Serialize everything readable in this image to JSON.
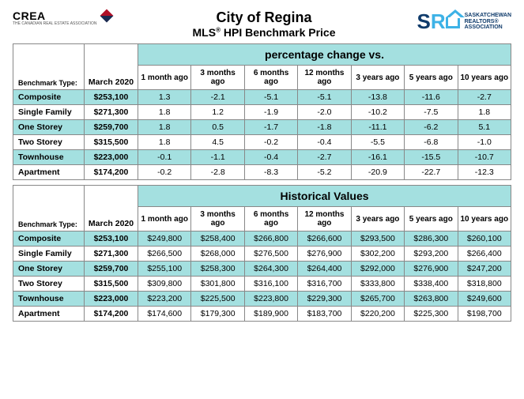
{
  "logos": {
    "crea_main": "CREA",
    "crea_sub": "THE CANADIAN REAL ESTATE ASSOCIATION",
    "sra_s": "S",
    "sra_r": "R",
    "sra_line1": "SASKATCHEWAN",
    "sra_line2": "REALTORS®",
    "sra_line3": "ASSOCIATION"
  },
  "title": {
    "line1": "City of Regina",
    "line2_a": "MLS",
    "line2_b": " HPI Benchmark Price"
  },
  "labels": {
    "benchmark_type": "Benchmark Type:",
    "date": "March 2020",
    "pct_header": "percentage change vs.",
    "hist_header": "Historical Values",
    "periods": [
      "1 month ago",
      "3 months ago",
      "6 months ago",
      "12 months ago",
      "3 years ago",
      "5 years ago",
      "10 years ago"
    ]
  },
  "pct_table": {
    "rows": [
      {
        "name": "Composite",
        "price": "$253,100",
        "vals": [
          "1.3",
          "-2.1",
          "-5.1",
          "-5.1",
          "-13.8",
          "-11.6",
          "-2.7"
        ],
        "alt": true
      },
      {
        "name": "Single Family",
        "price": "$271,300",
        "vals": [
          "1.8",
          "1.2",
          "-1.9",
          "-2.0",
          "-10.2",
          "-7.5",
          "1.8"
        ],
        "alt": false
      },
      {
        "name": "One Storey",
        "price": "$259,700",
        "vals": [
          "1.8",
          "0.5",
          "-1.7",
          "-1.8",
          "-11.1",
          "-6.2",
          "5.1"
        ],
        "alt": true
      },
      {
        "name": "Two Storey",
        "price": "$315,500",
        "vals": [
          "1.8",
          "4.5",
          "-0.2",
          "-0.4",
          "-5.5",
          "-6.8",
          "-1.0"
        ],
        "alt": false
      },
      {
        "name": "Townhouse",
        "price": "$223,000",
        "vals": [
          "-0.1",
          "-1.1",
          "-0.4",
          "-2.7",
          "-16.1",
          "-15.5",
          "-10.7"
        ],
        "alt": true
      },
      {
        "name": "Apartment",
        "price": "$174,200",
        "vals": [
          "-0.2",
          "-2.8",
          "-8.3",
          "-5.2",
          "-20.9",
          "-22.7",
          "-12.3"
        ],
        "alt": false
      }
    ]
  },
  "hist_table": {
    "rows": [
      {
        "name": "Composite",
        "price": "$253,100",
        "vals": [
          "$249,800",
          "$258,400",
          "$266,800",
          "$266,600",
          "$293,500",
          "$286,300",
          "$260,100"
        ],
        "alt": true
      },
      {
        "name": "Single Family",
        "price": "$271,300",
        "vals": [
          "$266,500",
          "$268,000",
          "$276,500",
          "$276,900",
          "$302,200",
          "$293,200",
          "$266,400"
        ],
        "alt": false
      },
      {
        "name": "One Storey",
        "price": "$259,700",
        "vals": [
          "$255,100",
          "$258,300",
          "$264,300",
          "$264,400",
          "$292,000",
          "$276,900",
          "$247,200"
        ],
        "alt": true
      },
      {
        "name": "Two Storey",
        "price": "$315,500",
        "vals": [
          "$309,800",
          "$301,800",
          "$316,100",
          "$316,700",
          "$333,800",
          "$338,400",
          "$318,800"
        ],
        "alt": false
      },
      {
        "name": "Townhouse",
        "price": "$223,000",
        "vals": [
          "$223,200",
          "$225,500",
          "$223,800",
          "$229,300",
          "$265,700",
          "$263,800",
          "$249,600"
        ],
        "alt": true
      },
      {
        "name": "Apartment",
        "price": "$174,200",
        "vals": [
          "$174,600",
          "$179,300",
          "$189,900",
          "$183,700",
          "$220,200",
          "$225,300",
          "$198,700"
        ],
        "alt": false
      }
    ]
  },
  "style": {
    "alt_row_color": "#a4e0e0",
    "border_color": "#888888",
    "text_color": "#000000",
    "background": "#ffffff"
  }
}
